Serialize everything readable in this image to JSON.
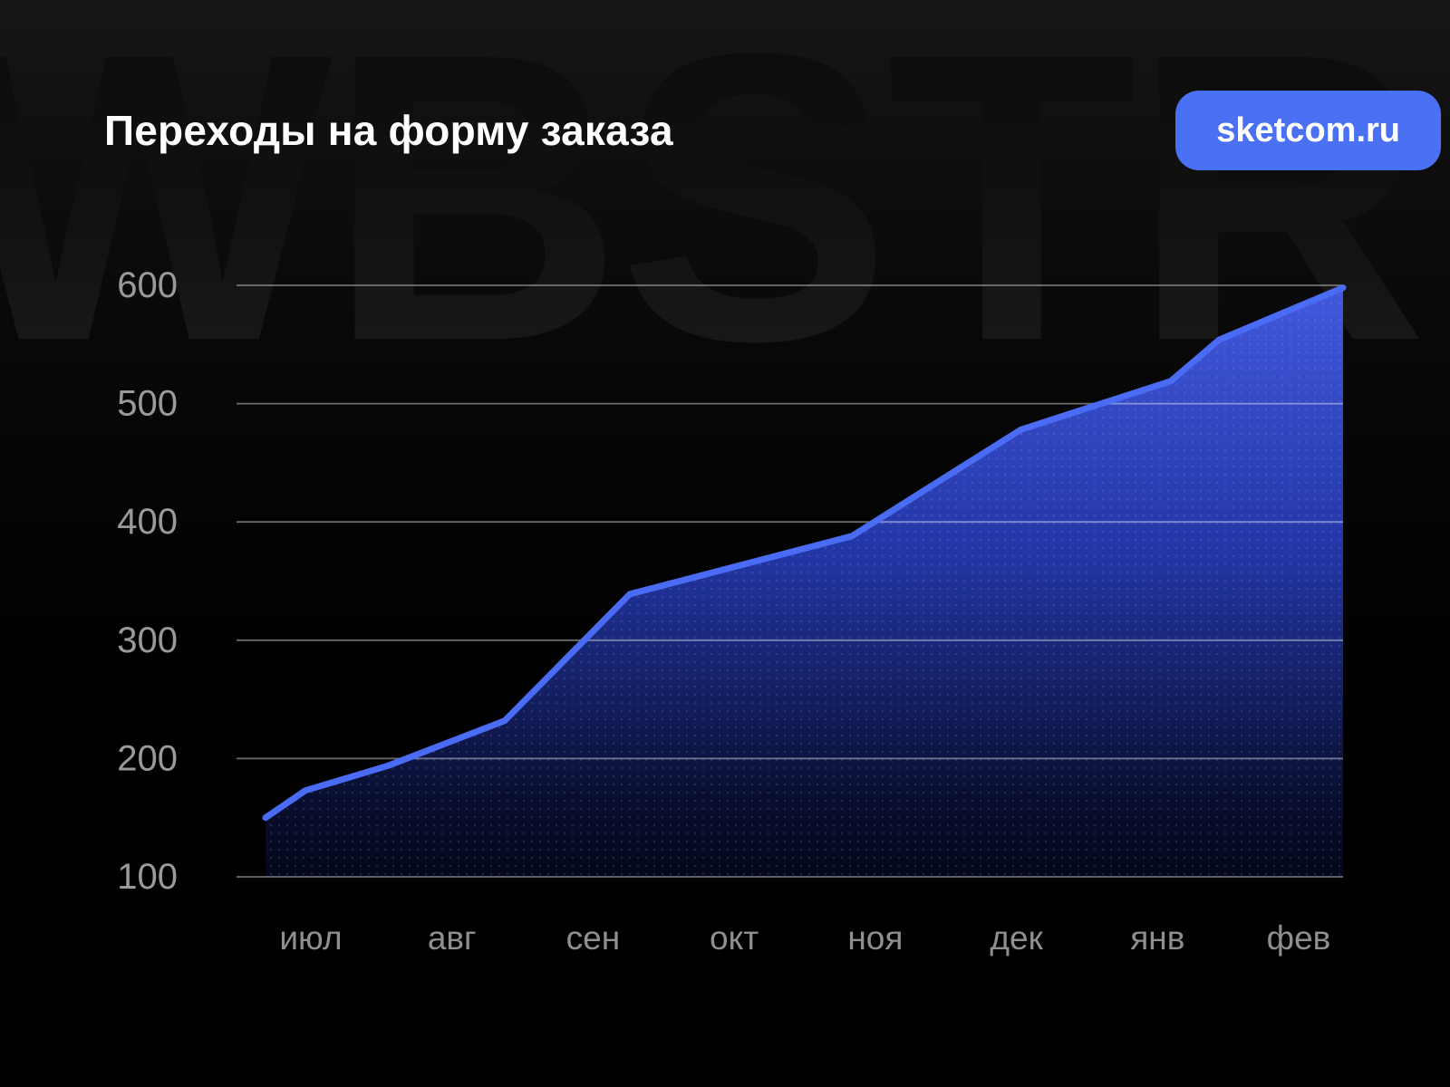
{
  "header": {
    "title": "Переходы на форму заказа",
    "badge": "sketcom.ru"
  },
  "watermark": {
    "text": "WBSTR"
  },
  "colors": {
    "accent": "#4a6cf4",
    "badge_bg": "#4a70f4",
    "line": "#4a6cf4",
    "area_top": "#4159dd",
    "area_mid": "#2336a6",
    "area_deep": "#0a1034",
    "area_bottom": "#04071a",
    "area_dots": "#aab6ff",
    "grid": "#ffffff",
    "y_label": "#9a9a9a",
    "x_label": "#8f8f8f"
  },
  "chart_data": {
    "type": "area",
    "title": "Переходы на форму заказа",
    "categories": [
      "июл",
      "авг",
      "сен",
      "окт",
      "ноя",
      "дек",
      "янв",
      "фев"
    ],
    "values": [
      175,
      215,
      305,
      360,
      395,
      470,
      515,
      585
    ],
    "xlabel": "",
    "ylabel": "",
    "ylim": [
      100,
      600
    ],
    "yticks": [
      600,
      500,
      400,
      300,
      200,
      100
    ],
    "grid": "horizontal-only",
    "legend": "none",
    "line_start_value": 150,
    "line_end_value": 598,
    "polyline": [
      [
        0.0,
        150
      ],
      [
        0.037,
        173
      ],
      [
        0.114,
        194
      ],
      [
        0.222,
        232
      ],
      [
        0.338,
        339
      ],
      [
        0.544,
        388
      ],
      [
        0.701,
        478
      ],
      [
        0.84,
        519
      ],
      [
        0.885,
        554
      ],
      [
        1.0,
        598
      ]
    ]
  }
}
